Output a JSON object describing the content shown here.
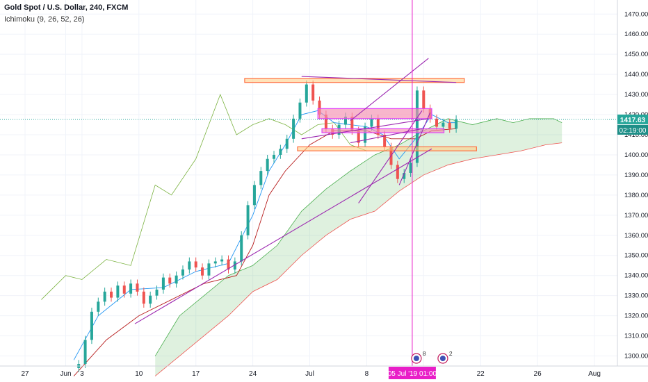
{
  "header": {
    "symbol": "Gold Spot / U.S. Dollar, 240, FXCM",
    "indicator": "Ichimoku (9, 26, 52, 26)"
  },
  "price_badge": {
    "price": "1417.63",
    "countdown": "02:19:00"
  },
  "crosshair_label": {
    "date": "05 Jul '19",
    "time": "01:00"
  },
  "events": [
    {
      "count": "8"
    },
    {
      "count": "2"
    }
  ],
  "colors": {
    "up": "#26a69a",
    "down": "#ef5350",
    "tenkan": "#2196f3",
    "kijun": "#b71c1c",
    "chikou": "#7cb342",
    "cloud": "#4caf50",
    "trend": "#9c27b0",
    "zone": "#f7a35c",
    "pink": "#e040fb",
    "price_line": "#26a69a",
    "crosshair": "#e91ec8"
  },
  "chart_data": {
    "type": "candlestick",
    "y_ticks": [
      1300,
      1310,
      1320,
      1330,
      1340,
      1350,
      1360,
      1370,
      1380,
      1390,
      1400,
      1410,
      1420,
      1430,
      1440,
      1450,
      1460,
      1470
    ],
    "y_tick_labels": [
      "1300.00",
      "1310.00",
      "1320.00",
      "1330.00",
      "1340.00",
      "1350.00",
      "1360.00",
      "1370.00",
      "1380.00",
      "1390.00",
      "1400.00",
      "1410.00",
      "1420.00",
      "1430.00",
      "1440.00",
      "1450.00",
      "1460.00",
      "1470.00"
    ],
    "ylim": [
      1295,
      1477
    ],
    "x_tick_labels": [
      "27",
      "Jun",
      "3",
      "10",
      "17",
      "24",
      "Jul",
      "8",
      "15",
      "22",
      "26",
      "Aug"
    ],
    "x_tick_days": [
      -4,
      1,
      3,
      10,
      17,
      24,
      31,
      38,
      45,
      52,
      59,
      66
    ],
    "last_price": 1417.63,
    "candles": [
      {
        "d": 2.6,
        "c": 1296
      },
      {
        "d": 3.4,
        "c": 1308
      },
      {
        "d": 4.2,
        "c": 1322
      },
      {
        "d": 5,
        "c": 1327
      },
      {
        "d": 5.8,
        "c": 1332
      },
      {
        "d": 6.6,
        "c": 1329
      },
      {
        "d": 7.4,
        "c": 1335
      },
      {
        "d": 8.2,
        "c": 1331
      },
      {
        "d": 9,
        "c": 1336
      },
      {
        "d": 9.8,
        "c": 1332
      },
      {
        "d": 10.6,
        "c": 1326
      },
      {
        "d": 11.4,
        "c": 1330
      },
      {
        "d": 12.2,
        "c": 1333
      },
      {
        "d": 13,
        "c": 1339
      },
      {
        "d": 13.8,
        "c": 1336
      },
      {
        "d": 14.6,
        "c": 1340
      },
      {
        "d": 15.4,
        "c": 1343
      },
      {
        "d": 16.2,
        "c": 1347
      },
      {
        "d": 17,
        "c": 1344
      },
      {
        "d": 17.8,
        "c": 1340
      },
      {
        "d": 18.6,
        "c": 1346
      },
      {
        "d": 19.4,
        "c": 1347
      },
      {
        "d": 20.2,
        "c": 1348
      },
      {
        "d": 21,
        "c": 1343
      },
      {
        "d": 21.8,
        "c": 1347
      },
      {
        "d": 22.6,
        "c": 1360
      },
      {
        "d": 23.4,
        "c": 1375
      },
      {
        "d": 24.2,
        "c": 1385
      },
      {
        "d": 25,
        "c": 1392
      },
      {
        "d": 25.8,
        "c": 1398
      },
      {
        "d": 26.6,
        "c": 1400
      },
      {
        "d": 27.4,
        "c": 1403
      },
      {
        "d": 28.2,
        "c": 1408
      },
      {
        "d": 29,
        "c": 1418
      },
      {
        "d": 29.8,
        "c": 1426
      },
      {
        "d": 30.6,
        "c": 1435
      },
      {
        "d": 31.4,
        "c": 1427
      },
      {
        "d": 32.2,
        "c": 1420
      },
      {
        "d": 33,
        "c": 1413
      },
      {
        "d": 33.8,
        "c": 1410
      },
      {
        "d": 34.6,
        "c": 1415
      },
      {
        "d": 35.4,
        "c": 1419
      },
      {
        "d": 36.2,
        "c": 1412
      },
      {
        "d": 37,
        "c": 1406
      },
      {
        "d": 37.8,
        "c": 1414
      },
      {
        "d": 38.6,
        "c": 1418
      },
      {
        "d": 39.4,
        "c": 1410
      },
      {
        "d": 40.2,
        "c": 1404
      },
      {
        "d": 41,
        "c": 1395
      },
      {
        "d": 41.8,
        "c": 1388
      },
      {
        "d": 42.6,
        "c": 1391
      },
      {
        "d": 43.4,
        "c": 1396
      },
      {
        "d": 44.2,
        "c": 1432
      },
      {
        "d": 45,
        "c": 1423
      },
      {
        "d": 45.8,
        "c": 1418
      },
      {
        "d": 46.6,
        "c": 1414
      },
      {
        "d": 47.4,
        "c": 1416
      },
      {
        "d": 48.2,
        "c": 1413
      },
      {
        "d": 49,
        "c": 1417.63
      }
    ],
    "tenkan": [
      [
        2,
        1298
      ],
      [
        5,
        1320
      ],
      [
        9,
        1333
      ],
      [
        13,
        1334
      ],
      [
        17,
        1342
      ],
      [
        21,
        1346
      ],
      [
        24,
        1370
      ],
      [
        26,
        1392
      ],
      [
        28,
        1405
      ],
      [
        30,
        1420
      ],
      [
        32,
        1422
      ],
      [
        34,
        1416
      ],
      [
        36,
        1415
      ],
      [
        38,
        1414
      ],
      [
        40,
        1410
      ],
      [
        42,
        1398
      ],
      [
        44,
        1408
      ],
      [
        46,
        1420
      ],
      [
        48,
        1416
      ],
      [
        49,
        1416
      ]
    ],
    "kijun": [
      [
        2,
        1290
      ],
      [
        6,
        1308
      ],
      [
        10,
        1320
      ],
      [
        14,
        1328
      ],
      [
        18,
        1336
      ],
      [
        22,
        1340
      ],
      [
        24,
        1355
      ],
      [
        26,
        1380
      ],
      [
        28,
        1392
      ],
      [
        31,
        1405
      ],
      [
        34,
        1412
      ],
      [
        38,
        1412
      ],
      [
        41,
        1408
      ],
      [
        44,
        1408
      ],
      [
        46,
        1412
      ],
      [
        49,
        1413
      ]
    ],
    "chikou": [
      [
        -2,
        1328
      ],
      [
        1,
        1340
      ],
      [
        3,
        1338
      ],
      [
        6,
        1348
      ],
      [
        9,
        1345
      ],
      [
        12,
        1385
      ],
      [
        14,
        1380
      ],
      [
        17,
        1398
      ],
      [
        20,
        1430
      ],
      [
        22,
        1410
      ],
      [
        24,
        1415
      ],
      [
        26,
        1418
      ],
      [
        28,
        1415
      ],
      [
        30,
        1410
      ],
      [
        32,
        1415
      ],
      [
        34,
        1416
      ],
      [
        36,
        1405
      ],
      [
        38,
        1402
      ]
    ],
    "span_a": [
      [
        12,
        1300
      ],
      [
        15,
        1320
      ],
      [
        18,
        1330
      ],
      [
        21,
        1340
      ],
      [
        24,
        1345
      ],
      [
        27,
        1355
      ],
      [
        30,
        1372
      ],
      [
        33,
        1383
      ],
      [
        36,
        1392
      ],
      [
        39,
        1400
      ],
      [
        42,
        1405
      ],
      [
        45,
        1412
      ],
      [
        48,
        1418
      ],
      [
        51,
        1415
      ],
      [
        54,
        1418
      ],
      [
        56,
        1416
      ],
      [
        58,
        1418
      ],
      [
        61,
        1418
      ],
      [
        62,
        1416
      ]
    ],
    "span_b": [
      [
        12,
        1290
      ],
      [
        15,
        1300
      ],
      [
        18,
        1310
      ],
      [
        21,
        1320
      ],
      [
        24,
        1332
      ],
      [
        27,
        1338
      ],
      [
        30,
        1350
      ],
      [
        33,
        1360
      ],
      [
        36,
        1368
      ],
      [
        39,
        1372
      ],
      [
        42,
        1382
      ],
      [
        45,
        1390
      ],
      [
        48,
        1395
      ],
      [
        51,
        1398
      ],
      [
        54,
        1400
      ],
      [
        57,
        1402
      ],
      [
        60,
        1405
      ],
      [
        62,
        1406
      ]
    ],
    "zones": [
      {
        "d1": 23,
        "d2": 50,
        "y1": 1436,
        "y2": 1438,
        "kind": "orange"
      },
      {
        "d1": 32,
        "d2": 46,
        "y1": 1418,
        "y2": 1423,
        "kind": "pink"
      },
      {
        "d1": 32.5,
        "d2": 47.5,
        "y1": 1411,
        "y2": 1413,
        "kind": "pink"
      },
      {
        "d1": 29.5,
        "d2": 51.5,
        "y1": 1402,
        "y2": 1404,
        "kind": "orange"
      }
    ],
    "trendlines": [
      [
        9.5,
        1316,
        46,
        1403
      ],
      [
        30,
        1439,
        49,
        1436
      ],
      [
        36,
        1417,
        45.6,
        1448
      ],
      [
        36,
        1406,
        44.8,
        1413
      ],
      [
        37,
        1376,
        44.8,
        1422
      ],
      [
        42,
        1385,
        45.8,
        1421
      ],
      [
        30,
        1408,
        45.6,
        1418
      ]
    ],
    "crosshair_day": 43.6
  }
}
